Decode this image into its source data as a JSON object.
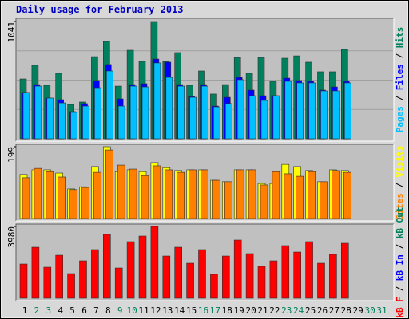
{
  "chart_data": [
    {
      "type": "bar",
      "title": "Daily usage for February 2013",
      "ylim": [
        0,
        1041
      ],
      "yticks": [
        1041
      ],
      "grid": true,
      "legend_separator": " / ",
      "series": [
        {
          "name": "Hits",
          "color": "#00805c",
          "values": [
            531,
            652,
            474,
            581,
            304,
            326,
            729,
            864,
            467,
            786,
            687,
            1041,
            687,
            765,
            474,
            602,
            397,
            481,
            722,
            581,
            722,
            510,
            715,
            736,
            680,
            595,
            595,
            793,
            null,
            null,
            null
          ]
        },
        {
          "name": "Files",
          "color": "#0000ff",
          "values": [
            411,
            481,
            361,
            347,
            241,
            312,
            517,
            659,
            354,
            481,
            489,
            708,
            680,
            481,
            375,
            481,
            290,
            368,
            545,
            432,
            382,
            382,
            538,
            517,
            510,
            432,
            460,
            510,
            null,
            null,
            null
          ]
        },
        {
          "name": "Pages",
          "color": "#00c0ff",
          "values": [
            411,
            467,
            361,
            318,
            234,
            290,
            453,
            602,
            290,
            467,
            460,
            673,
            545,
            467,
            368,
            467,
            283,
            312,
            524,
            382,
            340,
            382,
            510,
            496,
            496,
            425,
            425,
            496,
            null,
            null,
            null
          ]
        }
      ]
    },
    {
      "type": "bar",
      "ylim": [
        0,
        199
      ],
      "yticks": [
        199
      ],
      "grid": false,
      "legend_separator": " / ",
      "series": [
        {
          "name": "Visits",
          "color": "#ffff00",
          "values": [
            122,
            135,
            135,
            126,
            82,
            88,
            144,
            199,
            130,
            135,
            130,
            155,
            141,
            133,
            135,
            135,
            106,
            102,
            135,
            135,
            97,
            97,
            150,
            144,
            133,
            102,
            135,
            133,
            null,
            null,
            null
          ]
        },
        {
          "name": "Sites",
          "color": "#ff8000",
          "values": [
            113,
            139,
            130,
            115,
            80,
            86,
            128,
            190,
            148,
            137,
            119,
            146,
            135,
            128,
            135,
            135,
            106,
            102,
            135,
            135,
            93,
            130,
            124,
            117,
            130,
            102,
            133,
            128,
            null,
            null,
            null
          ]
        }
      ]
    },
    {
      "type": "bar",
      "ylim": [
        0,
        3980
      ],
      "yticks": [
        3980
      ],
      "grid": false,
      "legend_separator": " / ",
      "series": [
        {
          "name": "kB F",
          "color": "#ff0000",
          "values": [
            1901,
            2830,
            1724,
            2387,
            1370,
            2078,
            2697,
            3538,
            1680,
            3139,
            3449,
            3980,
            2343,
            2830,
            1945,
            2697,
            1327,
            2343,
            3228,
            2476,
            1768,
            2078,
            2918,
            2564,
            3139,
            1945,
            2432,
            3051,
            null,
            null,
            null
          ]
        }
      ],
      "legend_extra": [
        {
          "name": "kB In",
          "color": "#0000ff"
        },
        {
          "name": "kB Out",
          "color": "#00805c"
        }
      ],
      "categories": [
        "1",
        "2",
        "3",
        "4",
        "5",
        "6",
        "7",
        "8",
        "9",
        "10",
        "11",
        "12",
        "13",
        "14",
        "15",
        "16",
        "17",
        "18",
        "19",
        "20",
        "21",
        "22",
        "23",
        "24",
        "25",
        "26",
        "27",
        "28",
        "29",
        "30",
        "31"
      ],
      "category_colors": [
        "#000000",
        "#00805c",
        "#00805c",
        "#000000",
        "#000000",
        "#000000",
        "#000000",
        "#000000",
        "#00805c",
        "#00805c",
        "#000000",
        "#000000",
        "#000000",
        "#000000",
        "#000000",
        "#00805c",
        "#00805c",
        "#000000",
        "#000000",
        "#000000",
        "#000000",
        "#000000",
        "#00805c",
        "#00805c",
        "#000000",
        "#000000",
        "#000000",
        "#000000",
        "#000000",
        "#00805c",
        "#00805c"
      ]
    }
  ]
}
